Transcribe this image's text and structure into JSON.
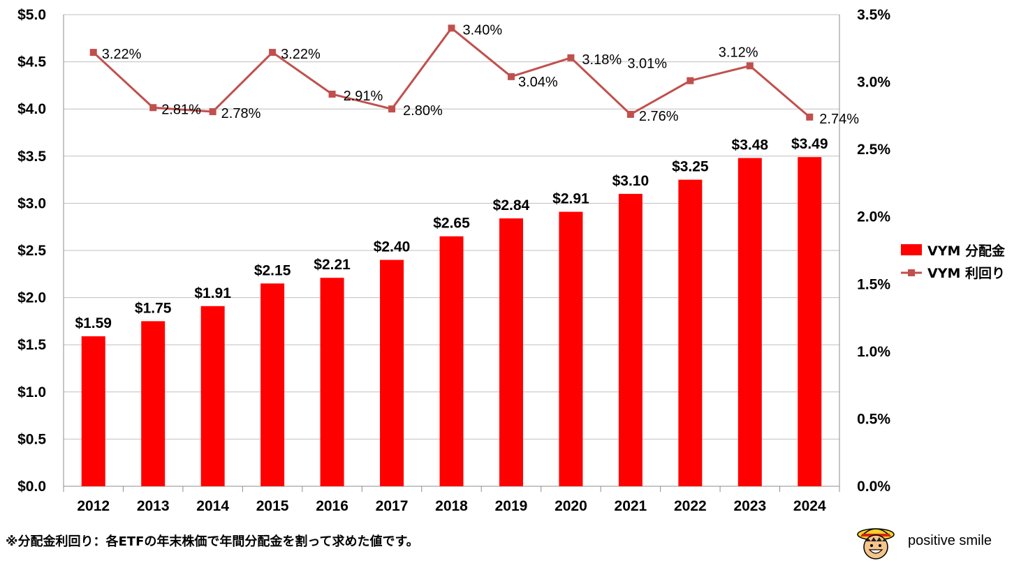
{
  "chart_data": {
    "type": "bar+line",
    "categories": [
      "2012",
      "2013",
      "2014",
      "2015",
      "2016",
      "2017",
      "2018",
      "2019",
      "2020",
      "2021",
      "2022",
      "2023",
      "2024"
    ],
    "series": [
      {
        "name": "VYM 分配金",
        "axis": "left",
        "kind": "bar",
        "color": "#ff0000",
        "values": [
          1.59,
          1.75,
          1.91,
          2.15,
          2.21,
          2.4,
          2.65,
          2.84,
          2.91,
          3.1,
          3.25,
          3.48,
          3.49
        ],
        "labels": [
          "$1.59",
          "$1.75",
          "$1.91",
          "$2.15",
          "$2.21",
          "$2.40",
          "$2.65",
          "$2.84",
          "$2.91",
          "$3.10",
          "$3.25",
          "$3.48",
          "$3.49"
        ]
      },
      {
        "name": "VYM 利回り",
        "axis": "right",
        "kind": "line",
        "color": "#c0504d",
        "values": [
          3.22,
          2.81,
          2.78,
          3.22,
          2.91,
          2.8,
          3.4,
          3.04,
          3.18,
          2.76,
          3.01,
          3.12,
          2.74
        ],
        "labels": [
          "3.22%",
          "2.81%",
          "2.78%",
          "3.22%",
          "2.91%",
          "2.80%",
          "3.40%",
          "3.04%",
          "3.18%",
          "2.76%",
          "3.01%",
          "3.12%",
          "2.74%"
        ]
      }
    ],
    "left_axis": {
      "ylim": [
        0,
        5
      ],
      "ticks": [
        0,
        0.5,
        1.0,
        1.5,
        2.0,
        2.5,
        3.0,
        3.5,
        4.0,
        4.5,
        5.0
      ],
      "tick_labels": [
        "$0.0",
        "$0.5",
        "$1.0",
        "$1.5",
        "$2.0",
        "$2.5",
        "$3.0",
        "$3.5",
        "$4.0",
        "$4.5",
        "$5.0"
      ]
    },
    "right_axis": {
      "ylim": [
        0,
        3.5
      ],
      "ticks": [
        0,
        0.5,
        1.0,
        1.5,
        2.0,
        2.5,
        3.0,
        3.5
      ],
      "tick_labels": [
        "0.0%",
        "0.5%",
        "1.0%",
        "1.5%",
        "2.0%",
        "2.5%",
        "3.0%",
        "3.5%"
      ]
    },
    "grid": true,
    "legend_position": "right"
  },
  "footnote": "※分配金利回り：各ETFの年末株価で年間分配金を割って求めた値です。",
  "brand": "positive smile"
}
